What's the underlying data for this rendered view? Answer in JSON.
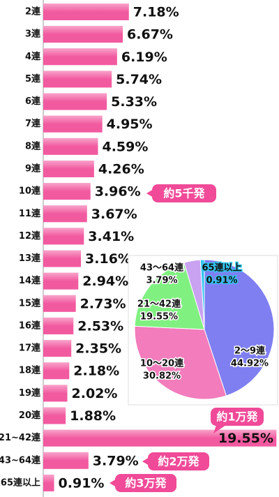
{
  "chart_data": [
    {
      "type": "bar",
      "orientation": "horizontal",
      "categories": [
        "2連",
        "3連",
        "4連",
        "5連",
        "6連",
        "7連",
        "8連",
        "9連",
        "10連",
        "11連",
        "12連",
        "13連",
        "14連",
        "15連",
        "16連",
        "17連",
        "18連",
        "19連",
        "20連",
        "21~42連",
        "43~64連",
        "65連以上"
      ],
      "values": [
        7.18,
        6.67,
        6.19,
        5.74,
        5.33,
        4.95,
        4.59,
        4.26,
        3.96,
        3.67,
        3.41,
        3.16,
        2.94,
        2.73,
        2.53,
        2.35,
        2.18,
        2.02,
        1.88,
        19.55,
        3.79,
        0.91
      ],
      "value_labels": [
        "7.18%",
        "6.67%",
        "6.19%",
        "5.74%",
        "5.33%",
        "4.95%",
        "4.59%",
        "4.26%",
        "3.96%",
        "3.67%",
        "3.41%",
        "3.16%",
        "2.94%",
        "2.73%",
        "2.53%",
        "2.35%",
        "2.18%",
        "2.02%",
        "1.88%",
        "19.55%",
        "3.79%",
        "0.91%"
      ],
      "color": "#f25aa0",
      "annotations": [
        "約5千発",
        "約1万発",
        "約2万発",
        "約3万発"
      ]
    },
    {
      "type": "pie",
      "categories": [
        "2～9連",
        "10～20連",
        "21～42連",
        "43～64連",
        "65連以上"
      ],
      "values": [
        44.92,
        30.82,
        19.55,
        3.79,
        0.91
      ],
      "value_labels": [
        "44.92%",
        "30.82%",
        "19.55%",
        "3.79%",
        "0.91%"
      ],
      "colors": [
        "#7f7ff2",
        "#f27cbc",
        "#80f080",
        "#c9a2f2",
        "#33c6f2"
      ]
    }
  ]
}
